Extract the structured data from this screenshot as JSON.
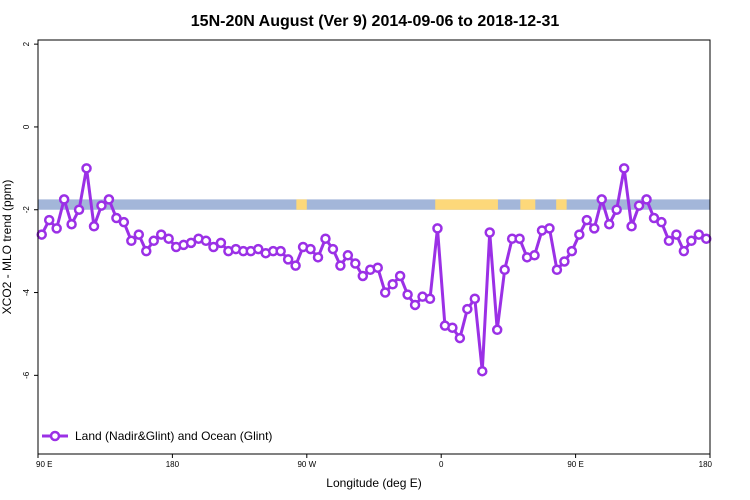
{
  "chart_data": {
    "type": "line",
    "title": "15N-20N August (Ver 9)   2014-09-06 to 2018-12-31",
    "xlabel": "Longitude (deg E)",
    "ylabel": "XCO2 - MLO trend (ppm)",
    "xlim": [
      90,
      450
    ],
    "ylim": [
      -7.9,
      2.1
    ],
    "x_ticks": [
      {
        "value": 90,
        "label": "90 E"
      },
      {
        "value": 180,
        "label": "180"
      },
      {
        "value": 270,
        "label": "90 W"
      },
      {
        "value": 360,
        "label": "0"
      },
      {
        "value": 450,
        "label": "90 E"
      },
      {
        "value": 540,
        "label": "180"
      }
    ],
    "y_ticks": [
      {
        "value": 2,
        "label": "2"
      },
      {
        "value": 0,
        "label": "0"
      },
      {
        "value": -2,
        "label": "-2"
      },
      {
        "value": -4,
        "label": "-4"
      },
      {
        "value": -6,
        "label": "-6"
      }
    ],
    "grid": false,
    "legend_position": "bottom-left",
    "background_band": {
      "y_range": [
        -1.75,
        -2.0
      ],
      "ocean_color": "#a3b6d9",
      "land_color": "#fdd87a",
      "land_segments": [
        [
          263,
          270
        ],
        [
          356,
          398
        ],
        [
          413,
          423
        ],
        [
          437,
          444
        ]
      ]
    },
    "series": [
      {
        "name": "Land (Nadir&Glint) and Ocean (Glint)",
        "color": "#9b30e6",
        "x": [
          92.5,
          97.5,
          102.5,
          107.5,
          112.5,
          117.5,
          122.5,
          127.5,
          132.5,
          137.5,
          142.5,
          147.5,
          152.5,
          157.5,
          162.5,
          167.5,
          172.5,
          177.5,
          182.5,
          187.5,
          192.5,
          197.5,
          202.5,
          207.5,
          212.5,
          217.5,
          222.5,
          227.5,
          232.5,
          237.5,
          242.5,
          247.5,
          252.5,
          257.5,
          262.5,
          267.5,
          272.5,
          277.5,
          282.5,
          287.5,
          292.5,
          297.5,
          302.5,
          307.5,
          312.5,
          317.5,
          322.5,
          327.5,
          332.5,
          337.5,
          342.5,
          347.5,
          352.5,
          357.5,
          362.5,
          367.5,
          372.5,
          377.5,
          382.5,
          387.5,
          392.5,
          397.5,
          402.5,
          407.5,
          412.5,
          417.5,
          422.5,
          427.5,
          432.5,
          437.5,
          442.5,
          447.5
        ],
        "values": [
          -2.6,
          -2.25,
          -2.45,
          -1.75,
          -2.35,
          -2.0,
          -1.0,
          -2.4,
          -1.9,
          -1.75,
          -2.2,
          -2.3,
          -2.75,
          -2.6,
          -3.0,
          -2.75,
          -2.6,
          -2.7,
          -2.9,
          -2.85,
          -2.8,
          -2.7,
          -2.75,
          -2.9,
          -2.8,
          -3.0,
          -2.95,
          -3.0,
          -3.0,
          -2.95,
          -3.05,
          -3.0,
          -3.0,
          -3.2,
          -3.35,
          -2.9,
          -2.95,
          -3.15,
          -2.7,
          -2.95,
          -3.35,
          -3.1,
          -3.3,
          -3.6,
          -3.45,
          -3.4,
          -4.0,
          -3.8,
          -3.6,
          -4.05,
          -4.3,
          -4.1,
          -4.15,
          -2.45,
          -4.8,
          -4.85,
          -5.1,
          -4.4,
          -4.15,
          -5.9,
          -2.55,
          -4.9,
          -3.45,
          -2.7,
          -2.7,
          -3.15,
          -3.1,
          -2.5,
          -2.45,
          -3.45,
          -3.25,
          -3.0
        ],
        "wrap_values": [
          -2.6,
          -2.25,
          -2.45,
          -1.75,
          -2.35,
          -2.0,
          -1.0,
          -2.4,
          -1.9,
          -1.75,
          -2.2,
          -2.3,
          -2.75,
          -2.6,
          -3.0,
          -2.75,
          -2.6,
          -2.7
        ]
      }
    ]
  }
}
